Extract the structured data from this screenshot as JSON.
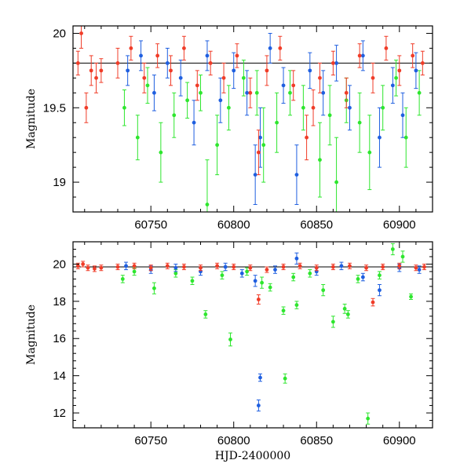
{
  "chart_data": [
    {
      "type": "scatter",
      "panel": "top",
      "title": "",
      "xlabel": "",
      "ylabel": "Magnitude",
      "xlim": [
        60703,
        60920
      ],
      "ylim": [
        20.05,
        18.8
      ],
      "y_inverted": true,
      "xticks": [
        "60750",
        "60800",
        "60850",
        "60900"
      ],
      "yticks": [
        "19",
        "19.5",
        "20"
      ],
      "reference_line": {
        "y": 19.8,
        "x_range": [
          60703,
          60920
        ],
        "color": "#000000"
      },
      "series": [
        {
          "color": "#2ee62e",
          "points": [
            {
              "x": 60734,
              "y": 19.5,
              "err": 0.12
            },
            {
              "x": 60742,
              "y": 19.3,
              "err": 0.15
            },
            {
              "x": 60748,
              "y": 19.65,
              "err": 0.12
            },
            {
              "x": 60756,
              "y": 19.2,
              "err": 0.2
            },
            {
              "x": 60764,
              "y": 19.45,
              "err": 0.15
            },
            {
              "x": 60772,
              "y": 19.55,
              "err": 0.12
            },
            {
              "x": 60780,
              "y": 19.6,
              "err": 0.12
            },
            {
              "x": 60784,
              "y": 18.85,
              "err": 0.3
            },
            {
              "x": 60790,
              "y": 19.25,
              "err": 0.2
            },
            {
              "x": 60797,
              "y": 19.5,
              "err": 0.15
            },
            {
              "x": 60806,
              "y": 19.7,
              "err": 0.12
            },
            {
              "x": 60814,
              "y": 19.6,
              "err": 0.15
            },
            {
              "x": 60818,
              "y": 19.25,
              "err": 0.25
            },
            {
              "x": 60826,
              "y": 19.4,
              "err": 0.2
            },
            {
              "x": 60834,
              "y": 19.6,
              "err": 0.15
            },
            {
              "x": 60842,
              "y": 19.5,
              "err": 0.15
            },
            {
              "x": 60852,
              "y": 19.15,
              "err": 0.25
            },
            {
              "x": 60858,
              "y": 19.45,
              "err": 0.2
            },
            {
              "x": 60862,
              "y": 19.0,
              "err": 0.3
            },
            {
              "x": 60868,
              "y": 19.55,
              "err": 0.15
            },
            {
              "x": 60876,
              "y": 19.4,
              "err": 0.2
            },
            {
              "x": 60882,
              "y": 19.2,
              "err": 0.25
            },
            {
              "x": 60890,
              "y": 19.5,
              "err": 0.15
            },
            {
              "x": 60898,
              "y": 19.7,
              "err": 0.12
            },
            {
              "x": 60904,
              "y": 19.3,
              "err": 0.2
            },
            {
              "x": 60912,
              "y": 19.6,
              "err": 0.15
            }
          ]
        },
        {
          "color": "#1f5fe0",
          "points": [
            {
              "x": 60736,
              "y": 19.75,
              "err": 0.1
            },
            {
              "x": 60744,
              "y": 19.85,
              "err": 0.1
            },
            {
              "x": 60752,
              "y": 19.6,
              "err": 0.12
            },
            {
              "x": 60760,
              "y": 19.8,
              "err": 0.1
            },
            {
              "x": 60768,
              "y": 19.7,
              "err": 0.12
            },
            {
              "x": 60776,
              "y": 19.4,
              "err": 0.15
            },
            {
              "x": 60784,
              "y": 19.85,
              "err": 0.1
            },
            {
              "x": 60792,
              "y": 19.55,
              "err": 0.15
            },
            {
              "x": 60800,
              "y": 19.75,
              "err": 0.12
            },
            {
              "x": 60808,
              "y": 19.6,
              "err": 0.15
            },
            {
              "x": 60813,
              "y": 19.05,
              "err": 0.2
            },
            {
              "x": 60816,
              "y": 19.3,
              "err": 0.2
            },
            {
              "x": 60822,
              "y": 19.9,
              "err": 0.1
            },
            {
              "x": 60830,
              "y": 19.65,
              "err": 0.12
            },
            {
              "x": 60838,
              "y": 19.05,
              "err": 0.2
            },
            {
              "x": 60846,
              "y": 19.75,
              "err": 0.12
            },
            {
              "x": 60854,
              "y": 19.6,
              "err": 0.15
            },
            {
              "x": 60862,
              "y": 19.8,
              "err": 0.12
            },
            {
              "x": 60870,
              "y": 19.5,
              "err": 0.15
            },
            {
              "x": 60878,
              "y": 19.85,
              "err": 0.1
            },
            {
              "x": 60888,
              "y": 19.3,
              "err": 0.2
            },
            {
              "x": 60896,
              "y": 19.65,
              "err": 0.12
            },
            {
              "x": 60902,
              "y": 19.45,
              "err": 0.15
            },
            {
              "x": 60910,
              "y": 19.75,
              "err": 0.12
            }
          ]
        },
        {
          "color": "#f03c28",
          "points": [
            {
              "x": 60706,
              "y": 19.8,
              "err": 0.08
            },
            {
              "x": 60708,
              "y": 20.0,
              "err": 0.1
            },
            {
              "x": 60711,
              "y": 19.5,
              "err": 0.1
            },
            {
              "x": 60714,
              "y": 19.75,
              "err": 0.1
            },
            {
              "x": 60717,
              "y": 19.7,
              "err": 0.1
            },
            {
              "x": 60720,
              "y": 19.75,
              "err": 0.08
            },
            {
              "x": 60730,
              "y": 19.8,
              "err": 0.1
            },
            {
              "x": 60738,
              "y": 19.9,
              "err": 0.08
            },
            {
              "x": 60746,
              "y": 19.7,
              "err": 0.1
            },
            {
              "x": 60754,
              "y": 19.85,
              "err": 0.08
            },
            {
              "x": 60762,
              "y": 19.75,
              "err": 0.1
            },
            {
              "x": 60770,
              "y": 19.9,
              "err": 0.08
            },
            {
              "x": 60778,
              "y": 19.65,
              "err": 0.1
            },
            {
              "x": 60786,
              "y": 19.8,
              "err": 0.08
            },
            {
              "x": 60794,
              "y": 19.7,
              "err": 0.1
            },
            {
              "x": 60802,
              "y": 19.85,
              "err": 0.08
            },
            {
              "x": 60810,
              "y": 19.6,
              "err": 0.1
            },
            {
              "x": 60815,
              "y": 19.2,
              "err": 0.15
            },
            {
              "x": 60820,
              "y": 19.75,
              "err": 0.1
            },
            {
              "x": 60828,
              "y": 19.9,
              "err": 0.08
            },
            {
              "x": 60836,
              "y": 19.65,
              "err": 0.1
            },
            {
              "x": 60844,
              "y": 19.3,
              "err": 0.15
            },
            {
              "x": 60848,
              "y": 19.5,
              "err": 0.12
            },
            {
              "x": 60852,
              "y": 19.7,
              "err": 0.1
            },
            {
              "x": 60860,
              "y": 19.8,
              "err": 0.08
            },
            {
              "x": 60868,
              "y": 19.6,
              "err": 0.1
            },
            {
              "x": 60876,
              "y": 19.85,
              "err": 0.08
            },
            {
              "x": 60884,
              "y": 19.7,
              "err": 0.1
            },
            {
              "x": 60892,
              "y": 19.9,
              "err": 0.08
            },
            {
              "x": 60900,
              "y": 19.75,
              "err": 0.1
            },
            {
              "x": 60908,
              "y": 19.85,
              "err": 0.08
            },
            {
              "x": 60914,
              "y": 19.8,
              "err": 0.08
            }
          ]
        }
      ]
    },
    {
      "type": "scatter",
      "panel": "bottom",
      "title": "",
      "xlabel": "HJD-2400000",
      "ylabel": "Magnitude",
      "xlim": [
        60703,
        60920
      ],
      "ylim": [
        21.2,
        11.2
      ],
      "y_inverted": true,
      "xticks": [
        "60750",
        "60800",
        "60850",
        "60900"
      ],
      "yticks": [
        "12",
        "14",
        "16",
        "18",
        "20"
      ],
      "reference_line": {
        "y": 19.85,
        "x_range": [
          60703,
          60920
        ],
        "color": "#000000"
      },
      "series": [
        {
          "color": "#2ee62e",
          "points": [
            {
              "x": 60733,
              "y": 19.2,
              "err": 0.2
            },
            {
              "x": 60740,
              "y": 19.6,
              "err": 0.2
            },
            {
              "x": 60752,
              "y": 18.7,
              "err": 0.3
            },
            {
              "x": 60765,
              "y": 19.5,
              "err": 0.2
            },
            {
              "x": 60775,
              "y": 19.1,
              "err": 0.2
            },
            {
              "x": 60783,
              "y": 17.3,
              "err": 0.2
            },
            {
              "x": 60793,
              "y": 19.4,
              "err": 0.2
            },
            {
              "x": 60798,
              "y": 15.95,
              "err": 0.35
            },
            {
              "x": 60808,
              "y": 19.6,
              "err": 0.2
            },
            {
              "x": 60817,
              "y": 19.0,
              "err": 0.3
            },
            {
              "x": 60822,
              "y": 18.75,
              "err": 0.2
            },
            {
              "x": 60830,
              "y": 17.5,
              "err": 0.2
            },
            {
              "x": 60831,
              "y": 13.85,
              "err": 0.25
            },
            {
              "x": 60836,
              "y": 19.3,
              "err": 0.2
            },
            {
              "x": 60838,
              "y": 17.8,
              "err": 0.2
            },
            {
              "x": 60846,
              "y": 19.5,
              "err": 0.2
            },
            {
              "x": 60854,
              "y": 18.6,
              "err": 0.3
            },
            {
              "x": 60860,
              "y": 16.9,
              "err": 0.3
            },
            {
              "x": 60867,
              "y": 17.6,
              "err": 0.25
            },
            {
              "x": 60869,
              "y": 17.3,
              "err": 0.2
            },
            {
              "x": 60875,
              "y": 19.2,
              "err": 0.2
            },
            {
              "x": 60881,
              "y": 11.7,
              "err": 0.3
            },
            {
              "x": 60888,
              "y": 19.4,
              "err": 0.2
            },
            {
              "x": 60896,
              "y": 20.8,
              "err": 0.3
            },
            {
              "x": 60902,
              "y": 20.4,
              "err": 0.3
            },
            {
              "x": 60907,
              "y": 18.25,
              "err": 0.15
            }
          ]
        },
        {
          "color": "#1f5fe0",
          "points": [
            {
              "x": 60735,
              "y": 19.9,
              "err": 0.2
            },
            {
              "x": 60750,
              "y": 19.7,
              "err": 0.2
            },
            {
              "x": 60765,
              "y": 19.8,
              "err": 0.2
            },
            {
              "x": 60780,
              "y": 19.6,
              "err": 0.2
            },
            {
              "x": 60795,
              "y": 19.85,
              "err": 0.2
            },
            {
              "x": 60805,
              "y": 19.5,
              "err": 0.2
            },
            {
              "x": 60813,
              "y": 19.1,
              "err": 0.3
            },
            {
              "x": 60815,
              "y": 12.4,
              "err": 0.3
            },
            {
              "x": 60816,
              "y": 13.9,
              "err": 0.2
            },
            {
              "x": 60825,
              "y": 19.7,
              "err": 0.2
            },
            {
              "x": 60838,
              "y": 20.3,
              "err": 0.3
            },
            {
              "x": 60850,
              "y": 19.6,
              "err": 0.2
            },
            {
              "x": 60865,
              "y": 19.9,
              "err": 0.2
            },
            {
              "x": 60878,
              "y": 19.3,
              "err": 0.2
            },
            {
              "x": 60888,
              "y": 18.6,
              "err": 0.3
            },
            {
              "x": 60900,
              "y": 19.8,
              "err": 0.2
            },
            {
              "x": 60912,
              "y": 19.7,
              "err": 0.2
            }
          ]
        },
        {
          "color": "#f03c28",
          "points": [
            {
              "x": 60706,
              "y": 19.9,
              "err": 0.15
            },
            {
              "x": 60709,
              "y": 20.0,
              "err": 0.15
            },
            {
              "x": 60712,
              "y": 19.8,
              "err": 0.15
            },
            {
              "x": 60716,
              "y": 19.75,
              "err": 0.15
            },
            {
              "x": 60720,
              "y": 19.8,
              "err": 0.15
            },
            {
              "x": 60730,
              "y": 19.85,
              "err": 0.15
            },
            {
              "x": 60740,
              "y": 19.9,
              "err": 0.15
            },
            {
              "x": 60750,
              "y": 19.8,
              "err": 0.15
            },
            {
              "x": 60760,
              "y": 19.9,
              "err": 0.15
            },
            {
              "x": 60770,
              "y": 19.85,
              "err": 0.15
            },
            {
              "x": 60780,
              "y": 19.8,
              "err": 0.15
            },
            {
              "x": 60790,
              "y": 19.9,
              "err": 0.15
            },
            {
              "x": 60800,
              "y": 19.85,
              "err": 0.15
            },
            {
              "x": 60810,
              "y": 19.8,
              "err": 0.15
            },
            {
              "x": 60815,
              "y": 18.1,
              "err": 0.25
            },
            {
              "x": 60820,
              "y": 19.7,
              "err": 0.15
            },
            {
              "x": 60830,
              "y": 19.85,
              "err": 0.15
            },
            {
              "x": 60840,
              "y": 19.9,
              "err": 0.15
            },
            {
              "x": 60850,
              "y": 19.8,
              "err": 0.15
            },
            {
              "x": 60860,
              "y": 19.85,
              "err": 0.15
            },
            {
              "x": 60870,
              "y": 19.9,
              "err": 0.15
            },
            {
              "x": 60880,
              "y": 19.8,
              "err": 0.15
            },
            {
              "x": 60884,
              "y": 17.95,
              "err": 0.2
            },
            {
              "x": 60890,
              "y": 19.85,
              "err": 0.15
            },
            {
              "x": 60900,
              "y": 19.9,
              "err": 0.15
            },
            {
              "x": 60910,
              "y": 19.8,
              "err": 0.15
            },
            {
              "x": 60915,
              "y": 19.85,
              "err": 0.15
            }
          ]
        }
      ]
    }
  ]
}
